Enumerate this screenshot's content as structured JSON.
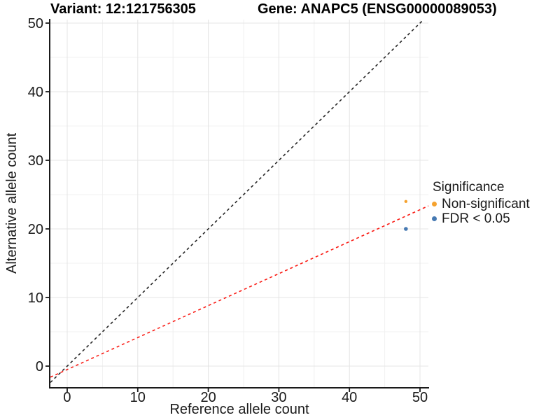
{
  "chart_data": {
    "type": "scatter",
    "title_left": "Variant: 12:121756305",
    "title_right": "Gene: ANAPC5 (ENSG00000089053)",
    "xlabel": "Reference allele count",
    "ylabel": "Alternative allele count",
    "x_domain": [
      -2.38,
      51.19
    ],
    "y_domain": [
      -3.06,
      50.51
    ],
    "x_ticks": [
      0,
      10,
      20,
      30,
      40,
      50
    ],
    "y_ticks": [
      0,
      10,
      20,
      30,
      40,
      50
    ],
    "x_minor_ticks": [
      5,
      15,
      25,
      35,
      45
    ],
    "y_minor_ticks": [
      5,
      15,
      25,
      35,
      45
    ],
    "grid": true,
    "background": "#FFFFFF",
    "grid_major_color": "#E4E4E4",
    "grid_minor_color": "#F0F0F0",
    "axis_color": "#1A1A1A",
    "points": [
      {
        "x": 48,
        "y": 24,
        "group": "Non-significant",
        "r": 2.2
      },
      {
        "x": 48,
        "y": 20,
        "group": "FDR < 0.05",
        "r": 2.8
      }
    ],
    "lines": [
      {
        "name": "identity-line",
        "slope": 1,
        "intercept": 0,
        "color": "#262626",
        "style": "dashed"
      },
      {
        "name": "fit-line",
        "slope": 0.466,
        "intercept": -0.5,
        "color": "#FA1B14",
        "style": "dashed"
      }
    ],
    "legend": {
      "title": "Significance",
      "position": "right",
      "items": [
        {
          "label": "Non-significant",
          "color": "#F5A22F"
        },
        {
          "label": "FDR < 0.05",
          "color": "#4679B2"
        }
      ]
    },
    "colors": {
      "Non-significant": "#F5A22F",
      "FDR < 0.05": "#4679B2"
    }
  }
}
